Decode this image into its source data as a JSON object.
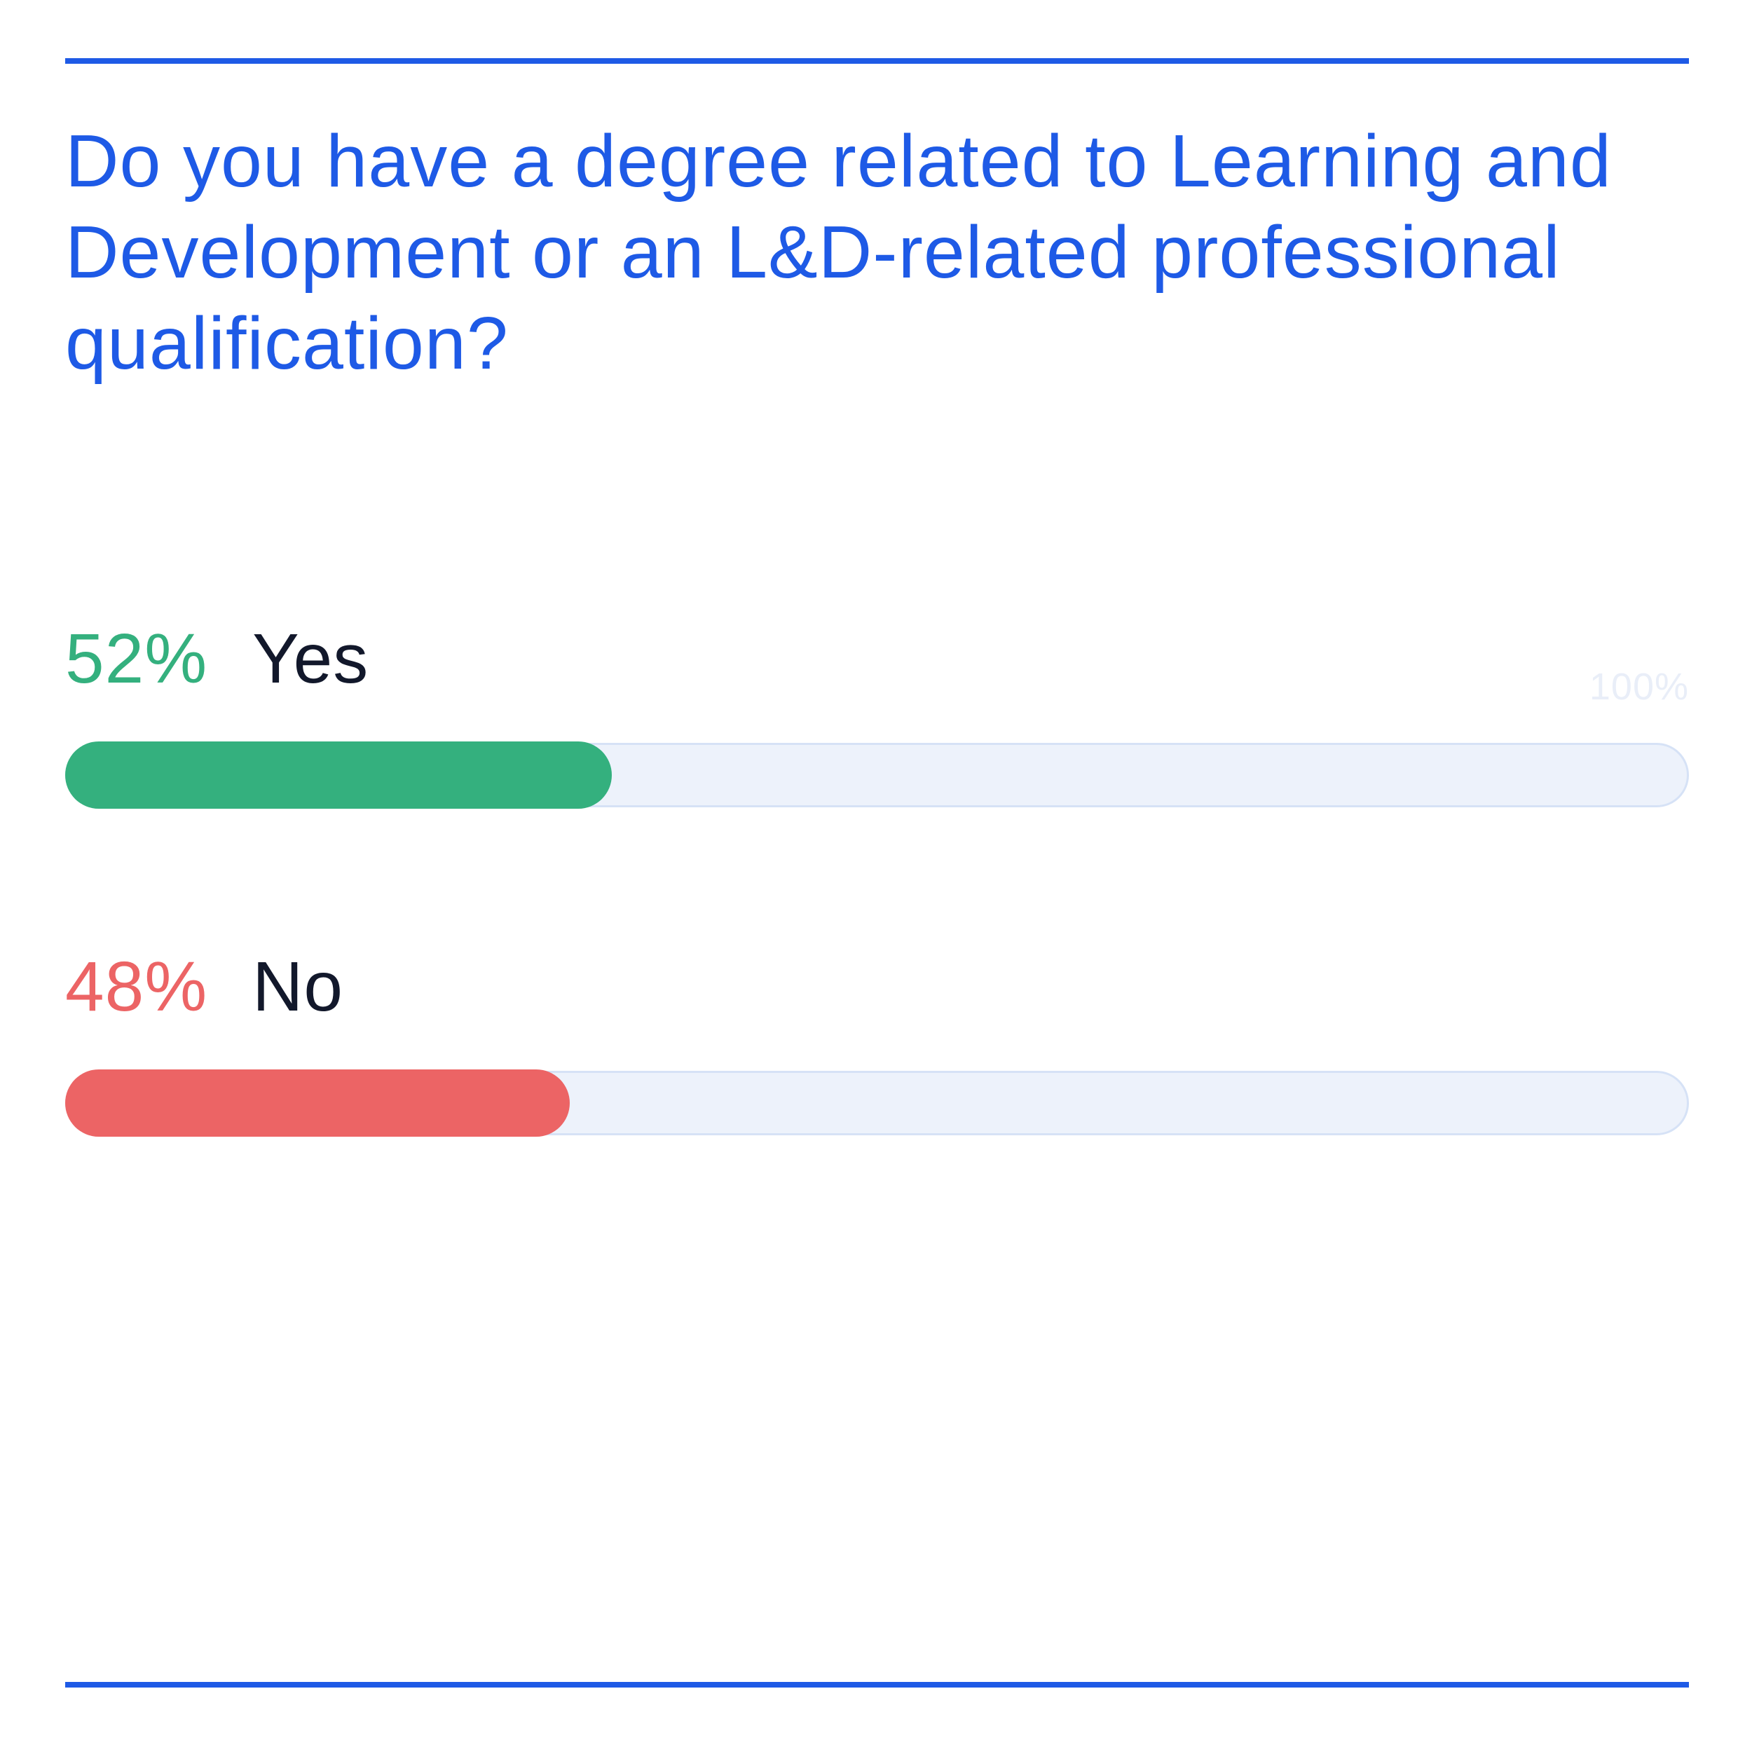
{
  "title": "Do you have a degree related to Learning and Development or an L&D-related professional qualification?",
  "scale_max_label": "100%",
  "colors": {
    "accent": "#1e5ae6",
    "yes": "#34b07e",
    "no": "#ec6465",
    "track": "#edf2fb"
  },
  "chart_data": {
    "type": "bar",
    "orientation": "horizontal",
    "title": "Do you have a degree related to Learning and Development or an L&D-related professional qualification?",
    "categories": [
      "Yes",
      "No"
    ],
    "values": [
      52,
      48
    ],
    "value_labels": [
      "52%",
      "48%"
    ],
    "xlim": [
      0,
      100
    ],
    "scale_max_label": "100%",
    "grid": false,
    "legend": "none"
  }
}
